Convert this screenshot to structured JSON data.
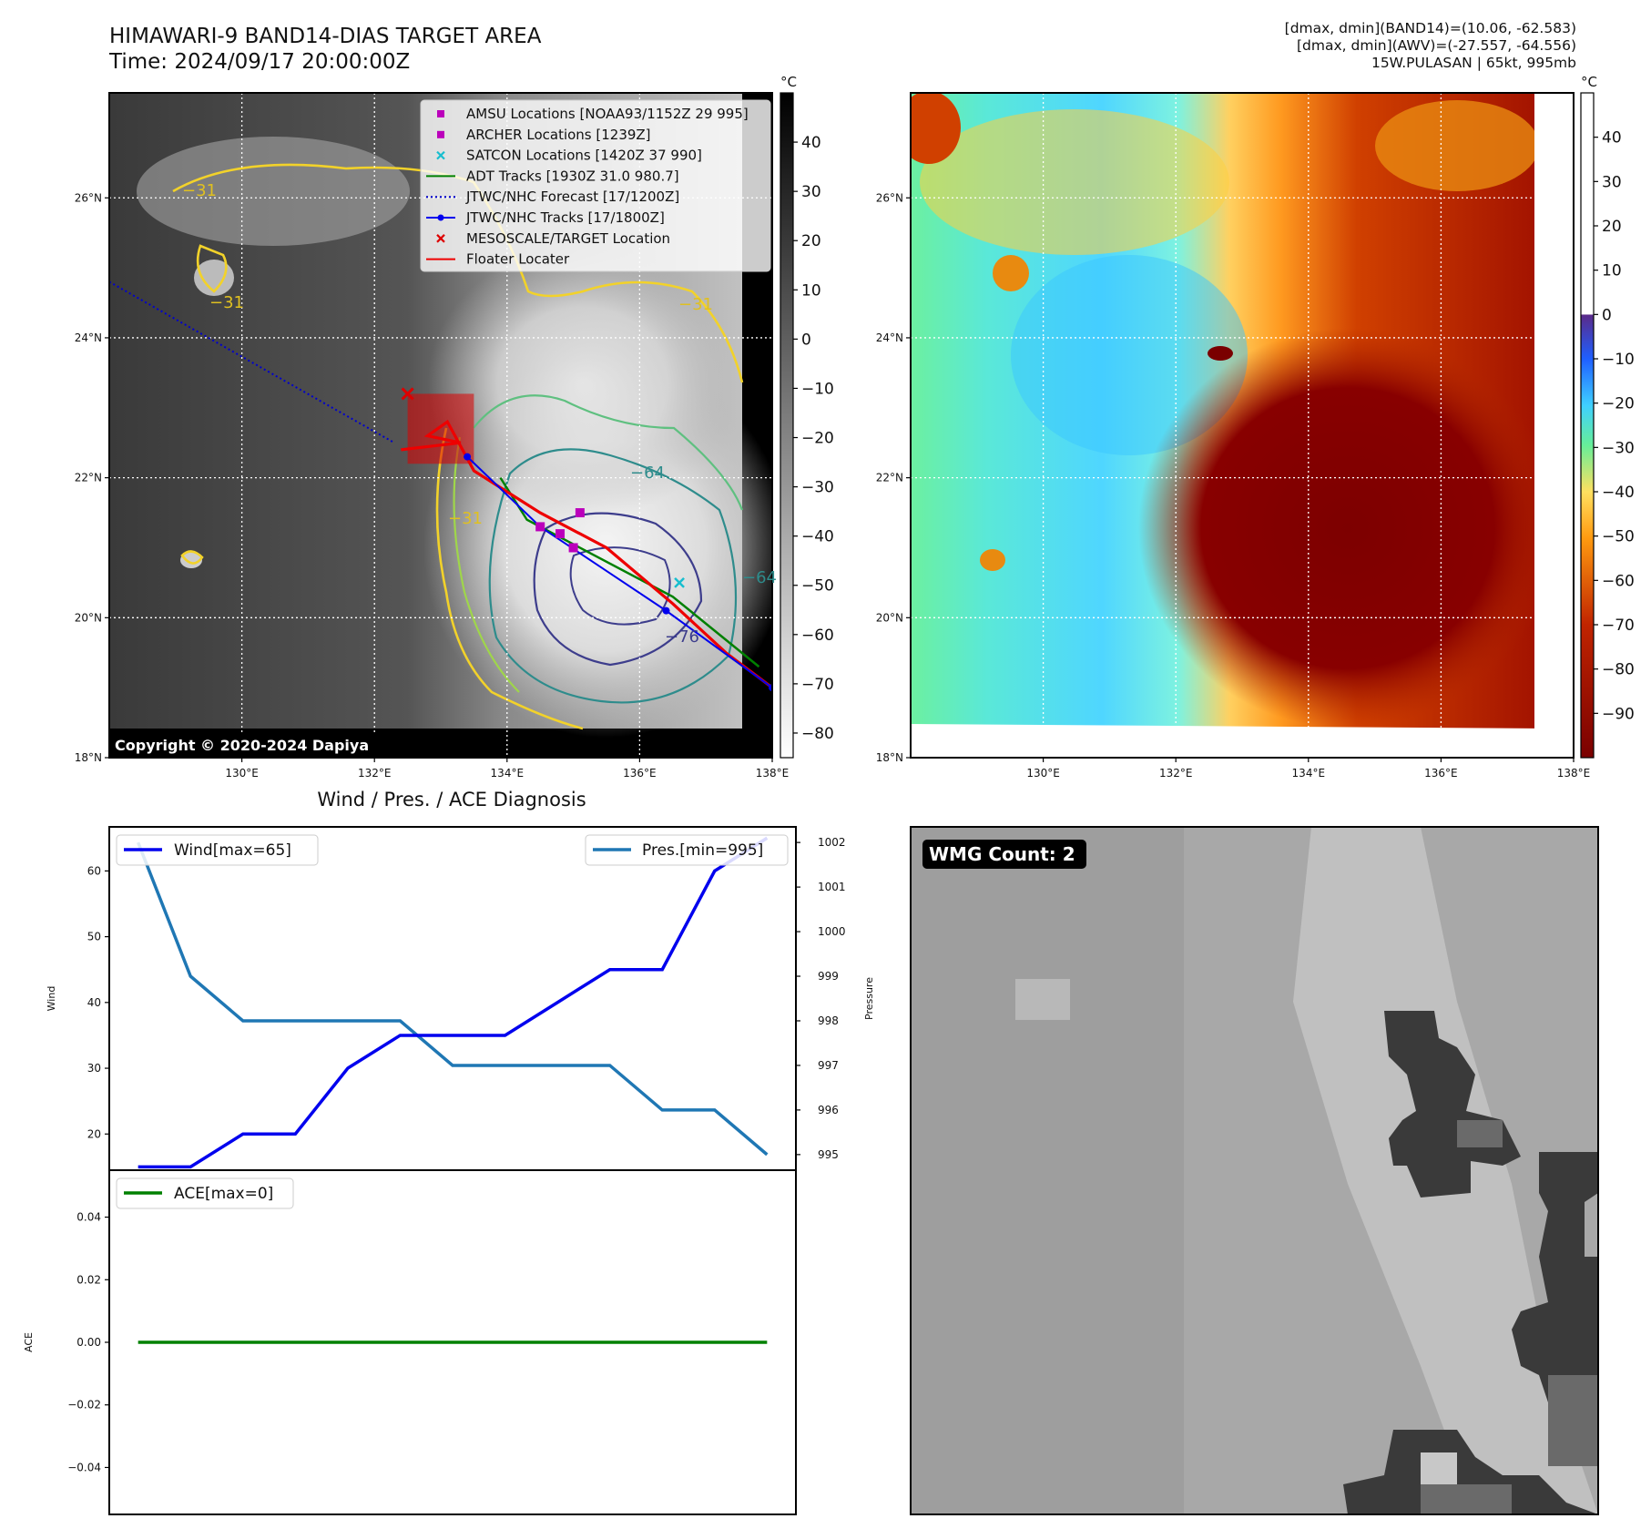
{
  "header": {
    "title": "HIMAWARI-9 BAND14-DIAS TARGET AREA",
    "time": "Time: 2024/09/17 20:00:00Z",
    "dmax_band14": "[dmax, dmin](BAND14)=(10.06, -62.583)",
    "dmax_awv": "[dmax, dmin](AWV)=(-27.557, -64.556)",
    "storm_info": "15W.PULASAN | 65kt, 995mb"
  },
  "colors": {
    "wind": "#0000ee",
    "pressure": "#1f77b4",
    "ace": "#008000",
    "amsu": "#bb00bb",
    "archer": "#bb00bb",
    "satcon": "#17becf",
    "adt": "#008000",
    "jtwc_forecast": "#0000cc",
    "jtwc_tracks": "#0000ee",
    "target": "#dd0000",
    "floater": "#ee0000"
  },
  "chart_data": [
    {
      "type": "heatmap",
      "name": "band14",
      "title": "HIMAWARI-9 BAND14-DIAS TARGET AREA",
      "x_ticks": [
        "130°E",
        "132°E",
        "134°E",
        "136°E",
        "138°E"
      ],
      "y_ticks": [
        "18°N",
        "20°N",
        "22°N",
        "24°N",
        "26°N"
      ],
      "lon_range": [
        128,
        138
      ],
      "lat_range": [
        18,
        27.5
      ],
      "colorbar_unit": "°C",
      "colorbar_ticks": [
        "40",
        "30",
        "20",
        "10",
        "0",
        "−10",
        "−20",
        "−30",
        "−40",
        "−50",
        "−60",
        "−70",
        "−80"
      ],
      "colorbar_values": [
        40,
        30,
        20,
        10,
        0,
        -10,
        -20,
        -30,
        -40,
        -50,
        -60,
        -70,
        -80
      ],
      "colorbar_range": [
        -85,
        50
      ],
      "contour_labels": [
        "−31",
        "−31",
        "−31",
        "−31",
        "−64",
        "−64",
        "−76"
      ],
      "copyright": "Copyright © 2020-2024 Dapiya",
      "legend": [
        "AMSU Locations [NOAA93/1152Z 29 995]",
        "ARCHER Locations [1239Z]",
        "SATCON Locations [1420Z 37 990]",
        "ADT Tracks [1930Z 31.0 980.7]",
        "JTWC/NHC Forecast [17/1200Z]",
        "JTWC/NHC Tracks [17/1800Z]",
        "MESOSCALE/TARGET Location",
        "Floater Locater"
      ],
      "jtwc_forecast_line": [
        [
          128,
          24.8
        ],
        [
          132.3,
          22.5
        ]
      ],
      "jtwc_track": [
        [
          133.4,
          22.3
        ],
        [
          134.5,
          21.3
        ],
        [
          136.4,
          20.1
        ],
        [
          138,
          19.0
        ]
      ],
      "adt_track": [
        [
          133.9,
          22.0
        ],
        [
          134.3,
          21.4
        ],
        [
          136.5,
          20.3
        ],
        [
          137.8,
          19.3
        ]
      ],
      "amsu_points": [
        [
          135.1,
          21.5
        ],
        [
          134.8,
          21.2
        ]
      ],
      "archer_points": [
        [
          134.5,
          21.3
        ],
        [
          135.0,
          21.0
        ]
      ],
      "satcon_points": [
        [
          136.6,
          20.5
        ]
      ],
      "target_point": [
        132.5,
        23.2
      ],
      "target_box": [
        [
          132.5,
          22.2
        ],
        [
          133.5,
          23.2
        ]
      ],
      "floater_line": [
        [
          132.4,
          22.4
        ],
        [
          133.3,
          22.5
        ],
        [
          132.8,
          22.6
        ],
        [
          133.1,
          22.8
        ],
        [
          133.5,
          22.1
        ],
        [
          134.5,
          21.5
        ],
        [
          135.5,
          21.0
        ],
        [
          136.5,
          20.2
        ],
        [
          137.3,
          19.5
        ],
        [
          138,
          19.0
        ]
      ]
    },
    {
      "type": "heatmap",
      "name": "awv",
      "x_ticks": [
        "130°E",
        "132°E",
        "134°E",
        "136°E",
        "138°E"
      ],
      "y_ticks": [
        "18°N",
        "20°N",
        "22°N",
        "24°N",
        "26°N"
      ],
      "lon_range": [
        128,
        138
      ],
      "lat_range": [
        18,
        27.5
      ],
      "colorbar_unit": "°C",
      "colorbar_ticks": [
        "40",
        "30",
        "20",
        "10",
        "0",
        "−10",
        "−20",
        "−30",
        "−40",
        "−50",
        "−60",
        "−70",
        "−80",
        "−90"
      ],
      "colorbar_values": [
        40,
        30,
        20,
        10,
        0,
        -10,
        -20,
        -30,
        -40,
        -50,
        -60,
        -70,
        -80,
        -90
      ],
      "colorbar_range": [
        -100,
        50
      ]
    },
    {
      "type": "line",
      "title": "Wind / Pres. / ACE Diagnosis",
      "ylabel": "Wind",
      "ylabel_right": "Pressure",
      "x": [
        0,
        1,
        2,
        3,
        4,
        5,
        6,
        7,
        8,
        9,
        10,
        11,
        12
      ],
      "xlim": [
        -0.55,
        12.55
      ],
      "ylim": [
        14.5,
        66.7
      ],
      "ylim_right": [
        994.65,
        1002.35
      ],
      "y_ticks": [
        20,
        30,
        40,
        50,
        60
      ],
      "y_ticks_right": [
        995,
        996,
        997,
        998,
        999,
        1000,
        1001,
        1002
      ],
      "series": [
        {
          "name": "Wind[max=65]",
          "values": [
            15,
            15,
            20,
            20,
            30,
            35,
            35,
            35,
            40,
            45,
            45,
            60,
            65
          ]
        },
        {
          "name": "Pres.[min=995]",
          "values": [
            1002,
            999,
            998,
            998,
            998,
            998,
            997,
            997,
            997,
            997,
            996,
            996,
            995
          ]
        }
      ]
    },
    {
      "type": "line",
      "ylabel": "ACE",
      "x": [
        0,
        1,
        2,
        3,
        4,
        5,
        6,
        7,
        8,
        9,
        10,
        11,
        12
      ],
      "xlim": [
        -0.55,
        12.55
      ],
      "ylim": [
        -0.055,
        0.055
      ],
      "y_ticks": [
        0.04,
        0.02,
        0.0,
        -0.02,
        -0.04
      ],
      "y_tick_labels": [
        "0.04",
        "0.02",
        "0.00",
        "−0.02",
        "−0.04"
      ],
      "series": [
        {
          "name": "ACE[max=0]",
          "values": [
            0,
            0,
            0,
            0,
            0,
            0,
            0,
            0,
            0,
            0,
            0,
            0,
            0
          ]
        }
      ]
    },
    {
      "type": "heatmap",
      "name": "wmg",
      "label": "WMG Count: 2"
    }
  ]
}
